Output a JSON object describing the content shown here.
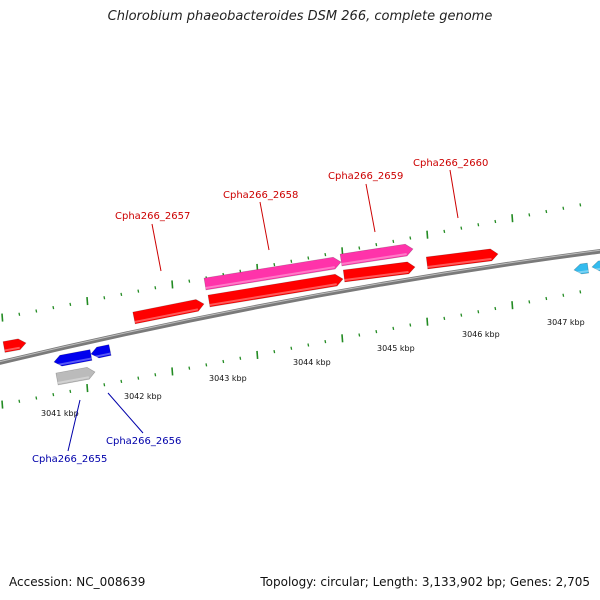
{
  "title": "Chlorobium phaeobacteroides DSM 266, complete genome",
  "footer": {
    "accession": "Accession: NC_008639",
    "summary": "Topology: circular; Length: 3,133,902 bp; Genes: 2,705"
  },
  "colors": {
    "backbone": "#808080",
    "forward_gene": "#ff0000",
    "forward_label": "#cc0000",
    "pink_gene": "#ff33aa",
    "reverse_gene": "#0000ee",
    "reverse_label": "#0000aa",
    "gray_gene": "#bbbbbb",
    "cyan_gene": "#33bbee",
    "tick": "#228b22"
  },
  "kbp_labels": [
    "3041 kbp",
    "3042 kbp",
    "3043 kbp",
    "3044 kbp",
    "3045 kbp",
    "3046 kbp",
    "3047 kbp"
  ],
  "forward_labels": [
    "Cpha266_2657",
    "Cpha266_2658",
    "Cpha266_2659",
    "Cpha266_2660"
  ],
  "reverse_labels": [
    "Cpha266_2655",
    "Cpha266_2656"
  ]
}
